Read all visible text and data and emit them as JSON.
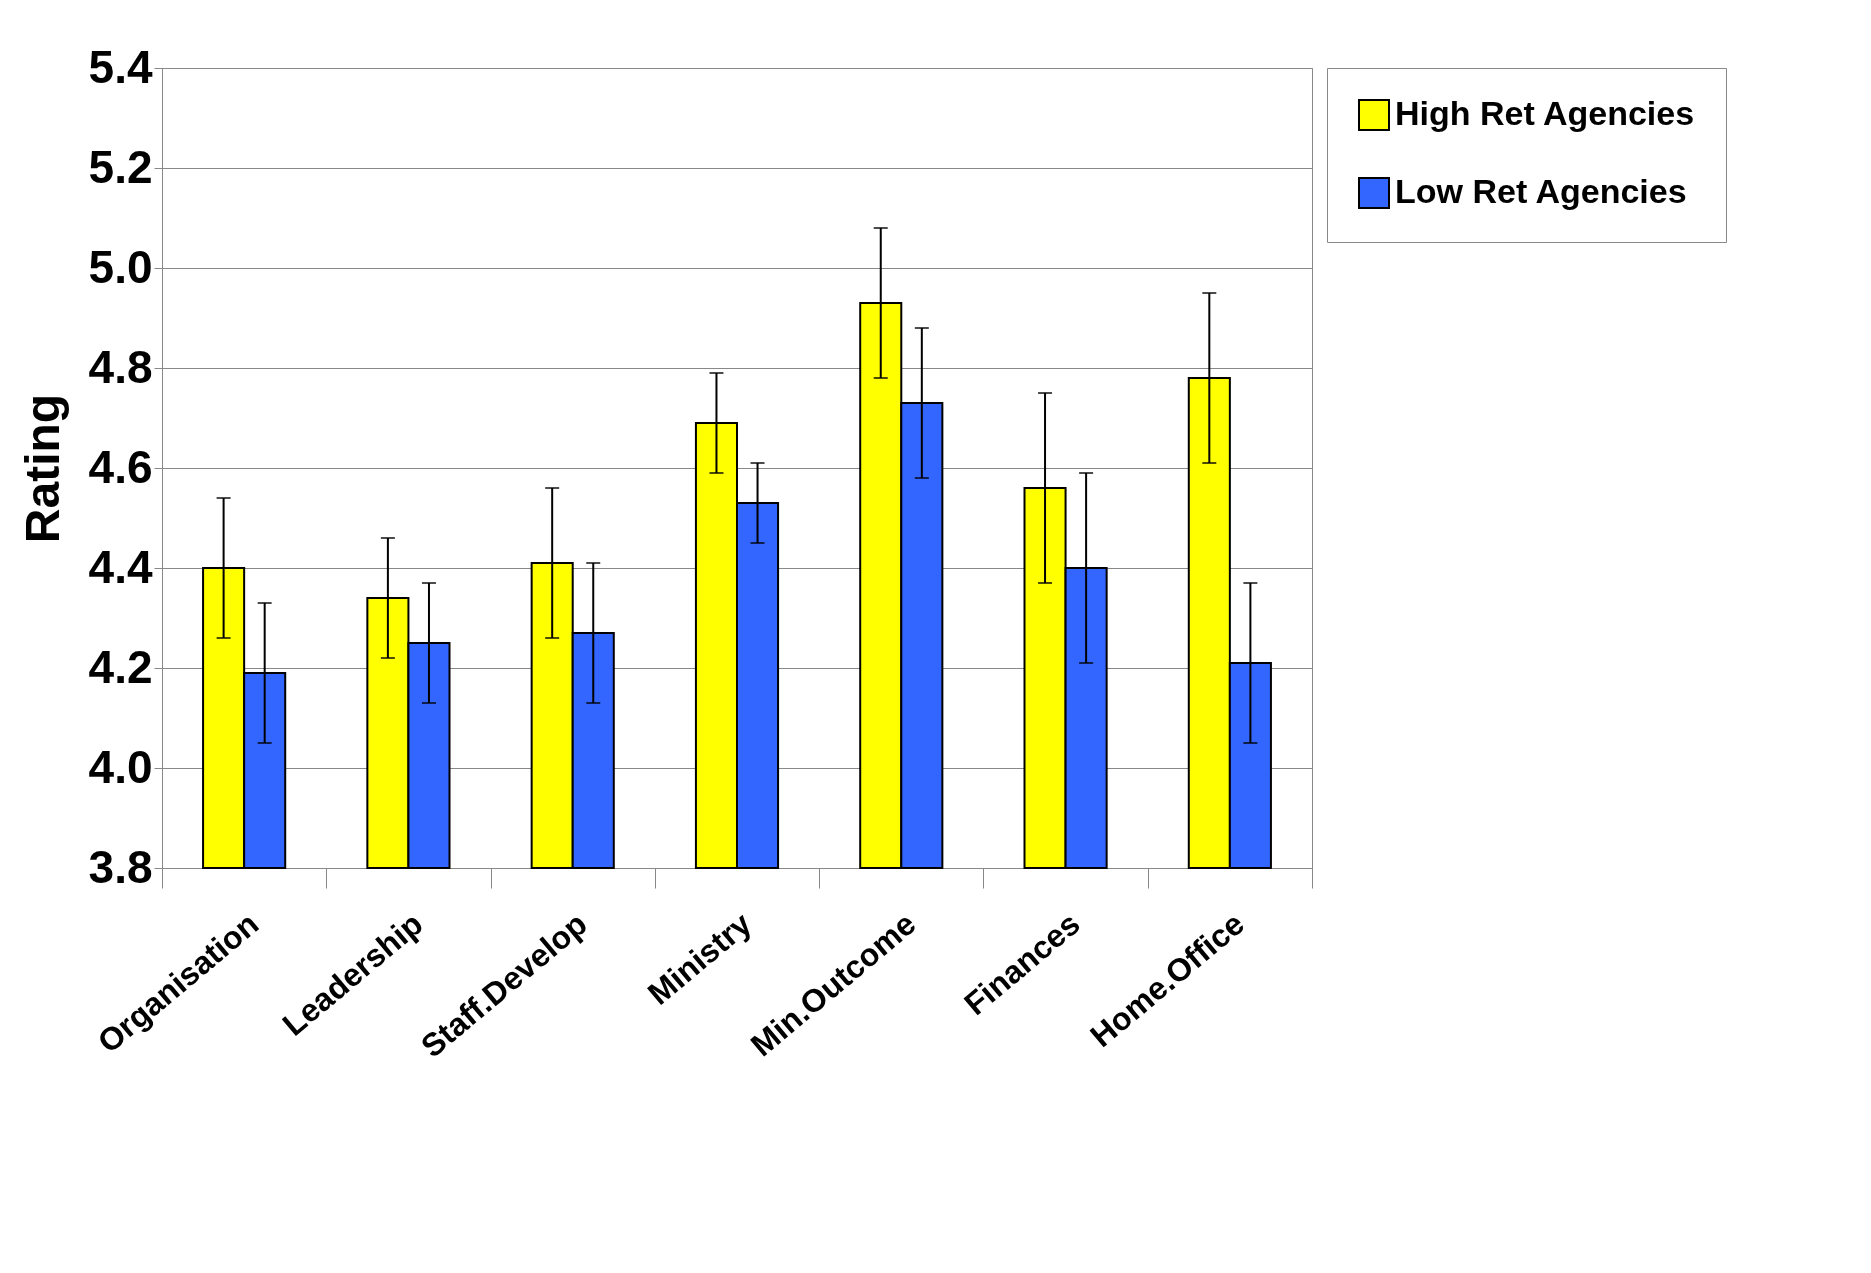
{
  "chart_data": {
    "type": "bar",
    "ylabel": "Rating",
    "categories": [
      "Organisation",
      "Leadership",
      "Staff.Develop",
      "Ministry",
      "Min.Outcome",
      "Finances",
      "Home.Office"
    ],
    "series": [
      {
        "name": "High Ret Agencies",
        "color": "#ffff00",
        "values": [
          4.4,
          4.34,
          4.41,
          4.69,
          4.93,
          4.56,
          4.78
        ],
        "errors": [
          0.14,
          0.12,
          0.15,
          0.1,
          0.15,
          0.19,
          0.17
        ]
      },
      {
        "name": "Low Ret Agencies",
        "color": "#3366ff",
        "values": [
          4.19,
          4.25,
          4.27,
          4.53,
          4.73,
          4.4,
          4.21
        ],
        "errors": [
          0.14,
          0.12,
          0.14,
          0.08,
          0.15,
          0.19,
          0.16
        ]
      }
    ],
    "ylim": [
      3.8,
      5.4
    ],
    "yticks": [
      {
        "value": 3.8,
        "label": "3.8"
      },
      {
        "value": 4.0,
        "label": "4.0"
      },
      {
        "value": 4.2,
        "label": "4.2"
      },
      {
        "value": 4.4,
        "label": "4.4"
      },
      {
        "value": 4.6,
        "label": "4.6"
      },
      {
        "value": 4.8,
        "label": "4.8"
      },
      {
        "value": 5.0,
        "label": "5.0"
      },
      {
        "value": 5.2,
        "label": "5.2"
      },
      {
        "value": 5.4,
        "label": "5.4"
      }
    ],
    "grid": "y",
    "legend": "right"
  }
}
